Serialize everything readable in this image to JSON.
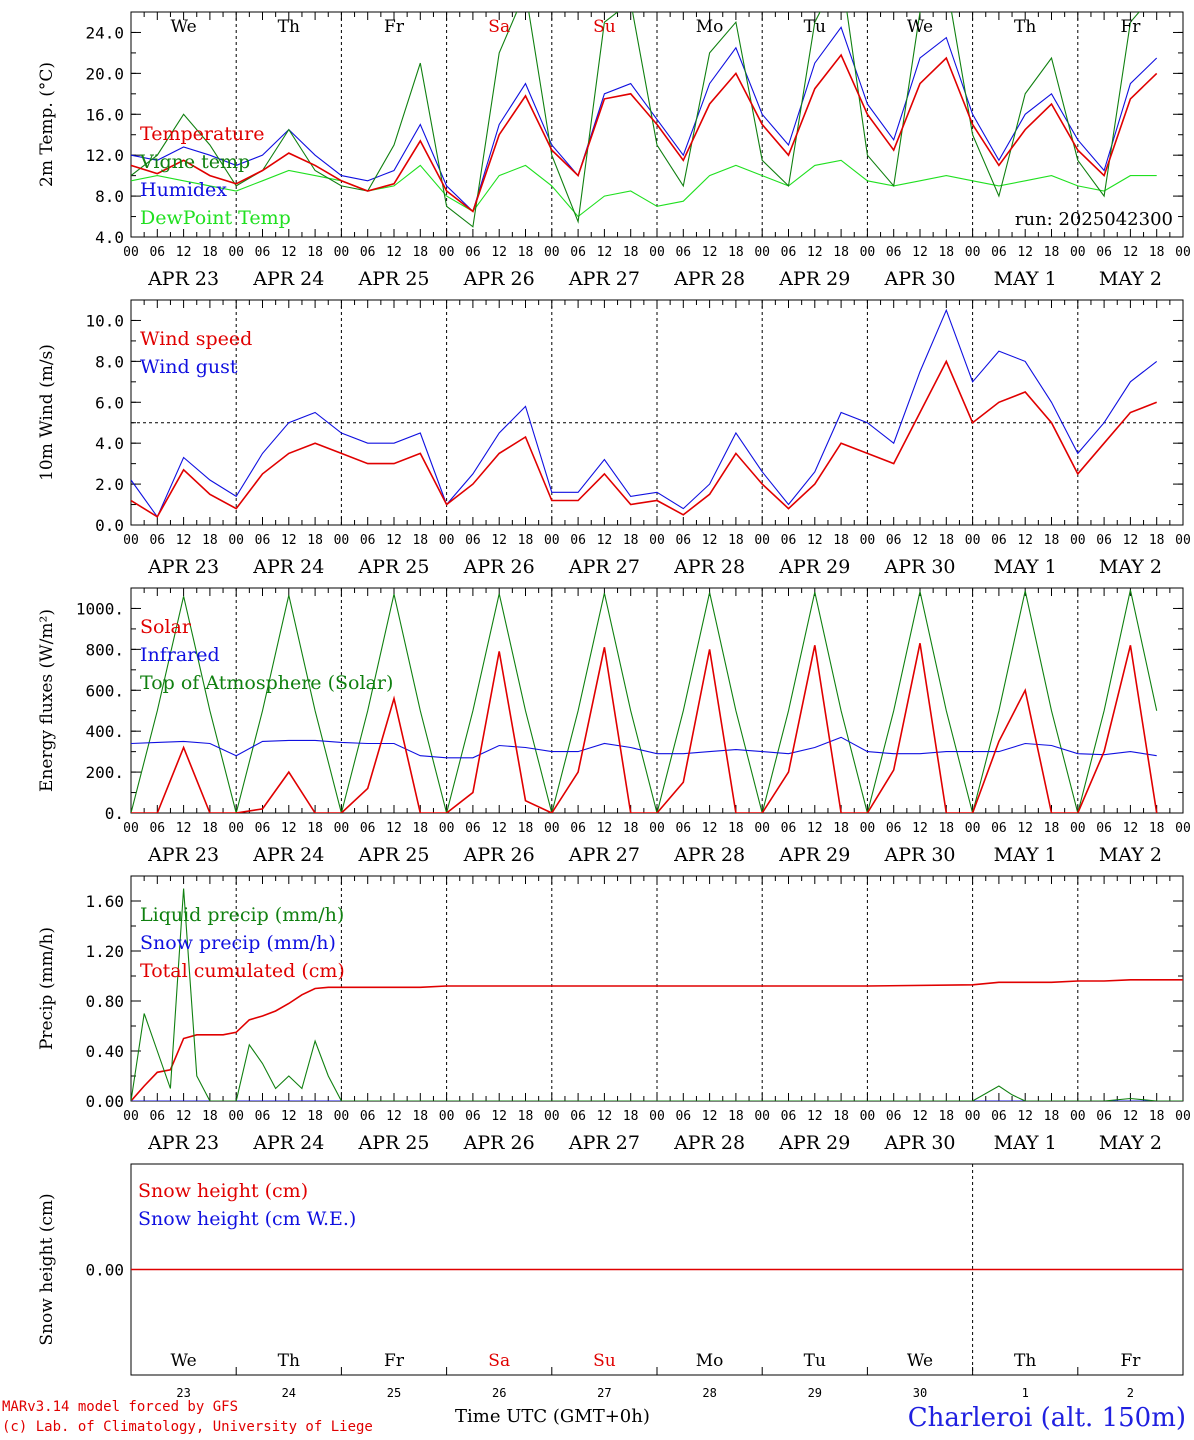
{
  "footer": {
    "model_credit": "MARv3.14 model forced by GFS",
    "lab_credit": "(c) Lab. of Climatology, University of Liege",
    "xaxis_title": "Time UTC (GMT+0h)",
    "station": "Charleroi (alt. 150m)"
  },
  "colors": {
    "red": "#e00000",
    "blue": "#1010e0",
    "green": "#108010",
    "lightgreen": "#20e020",
    "black": "#000000"
  },
  "chart_data": [
    {
      "type": "line",
      "title": "",
      "ylabel": "2m Temp. (°C)",
      "xlabel": "",
      "ylim": [
        4.0,
        26.0
      ],
      "yticks": [
        4.0,
        8.0,
        12.0,
        16.0,
        20.0,
        24.0
      ],
      "ytick_labels": [
        "4.0",
        "8.0",
        "12.0",
        "16.0",
        "20.0",
        "24.0"
      ],
      "x_hours": [
        0,
        6,
        12,
        18,
        24,
        30,
        36,
        42,
        48,
        54,
        60,
        66,
        72,
        78,
        84,
        90,
        96,
        102,
        108,
        114,
        120,
        126,
        132,
        138,
        144,
        150,
        156,
        162,
        168,
        174,
        180,
        186,
        192,
        198,
        204,
        210,
        216,
        222,
        228,
        234
      ],
      "weekday_labels": [
        "We",
        "Th",
        "Fr",
        "Sa",
        "Su",
        "Mo",
        "Tu",
        "We",
        "Th",
        "Fr"
      ],
      "weekday_colors": [
        "black",
        "black",
        "black",
        "red",
        "red",
        "black",
        "black",
        "black",
        "black",
        "black"
      ],
      "hour_tick_labels": [
        "00",
        "06",
        "12",
        "18"
      ],
      "date_labels": [
        "APR 23",
        "APR 24",
        "APR 25",
        "APR 26",
        "APR 27",
        "APR 28",
        "APR 29",
        "APR 30",
        "MAY  1",
        "MAY  2"
      ],
      "annotation": "run: 2025042300",
      "series": [
        {
          "name": "Temperature",
          "color": "red",
          "values": [
            11.0,
            10.2,
            11.5,
            10.0,
            9.2,
            10.5,
            12.2,
            11.0,
            9.5,
            8.5,
            9.2,
            13.4,
            8.5,
            6.5,
            14.0,
            17.8,
            12.5,
            10.0,
            17.5,
            18.0,
            15.0,
            11.5,
            17.0,
            20.0,
            15.0,
            12.0,
            18.5,
            21.8,
            16.0,
            12.5,
            19.0,
            21.5,
            15.0,
            11.0,
            14.5,
            17.0,
            12.5,
            10.0,
            17.5,
            20.0
          ]
        },
        {
          "name": "Vigne temp",
          "color": "green",
          "values": [
            10.0,
            12.0,
            16.0,
            13.0,
            9.0,
            10.5,
            14.5,
            10.5,
            9.0,
            8.5,
            13.0,
            21.0,
            7.0,
            5.0,
            22.0,
            28.0,
            12.0,
            5.5,
            25.0,
            27.0,
            13.0,
            9.0,
            22.0,
            25.0,
            11.5,
            9.0,
            25.0,
            30.0,
            12.0,
            9.0,
            26.0,
            29.0,
            14.0,
            8.0,
            18.0,
            21.5,
            11.5,
            8.0,
            25.0,
            28.0
          ]
        },
        {
          "name": "Humidex",
          "color": "blue",
          "values": [
            12.0,
            11.5,
            12.8,
            12.0,
            11.0,
            12.0,
            14.5,
            12.0,
            10.0,
            9.5,
            10.5,
            15.0,
            9.0,
            6.5,
            15.0,
            19.0,
            13.0,
            10.0,
            18.0,
            19.0,
            15.5,
            12.0,
            19.0,
            22.5,
            16.0,
            13.0,
            21.0,
            24.5,
            17.0,
            13.5,
            21.5,
            23.5,
            16.0,
            11.5,
            16.0,
            18.0,
            13.5,
            10.5,
            19.0,
            21.5
          ]
        },
        {
          "name": "DewPoint Temp",
          "color": "lightgreen",
          "values": [
            9.5,
            10.0,
            9.5,
            9.0,
            8.5,
            9.5,
            10.5,
            10.0,
            9.5,
            8.5,
            9.0,
            11.0,
            8.0,
            6.5,
            10.0,
            11.0,
            9.0,
            6.0,
            8.0,
            8.5,
            7.0,
            7.5,
            10.0,
            11.0,
            10.0,
            9.0,
            11.0,
            11.5,
            9.5,
            9.0,
            9.5,
            10.0,
            9.5,
            9.0,
            9.5,
            10.0,
            9.0,
            8.5,
            10.0,
            10.0
          ]
        }
      ]
    },
    {
      "type": "line",
      "title": "",
      "ylabel": "10m Wind (m/s)",
      "xlabel": "",
      "ylim": [
        0.0,
        11.0
      ],
      "yticks": [
        0.0,
        2.0,
        4.0,
        6.0,
        8.0,
        10.0
      ],
      "ytick_labels": [
        "0.0",
        "2.0",
        "4.0",
        "6.0",
        "8.0",
        "10.0"
      ],
      "x_hours": [
        0,
        6,
        12,
        18,
        24,
        30,
        36,
        42,
        48,
        54,
        60,
        66,
        72,
        78,
        84,
        90,
        96,
        102,
        108,
        114,
        120,
        126,
        132,
        138,
        144,
        150,
        156,
        162,
        168,
        174,
        180,
        186,
        192,
        198,
        204,
        210,
        216,
        222,
        228,
        234
      ],
      "reference_line": 5.0,
      "weekday_labels": [],
      "hour_tick_labels": [
        "00",
        "06",
        "12",
        "18"
      ],
      "date_labels": [
        "APR 23",
        "APR 24",
        "APR 25",
        "APR 26",
        "APR 27",
        "APR 28",
        "APR 29",
        "APR 30",
        "MAY  1",
        "MAY  2"
      ],
      "series": [
        {
          "name": "Wind speed",
          "color": "red",
          "values": [
            1.2,
            0.4,
            2.7,
            1.5,
            0.8,
            2.5,
            3.5,
            4.0,
            3.5,
            3.0,
            3.0,
            3.5,
            1.0,
            2.0,
            3.5,
            4.3,
            1.2,
            1.2,
            2.5,
            1.0,
            1.2,
            0.5,
            1.5,
            3.5,
            2.0,
            0.8,
            2.0,
            4.0,
            3.5,
            3.0,
            5.5,
            8.0,
            5.0,
            6.0,
            6.5,
            5.0,
            2.5,
            4.0,
            5.5,
            6.0
          ]
        },
        {
          "name": "Wind gust",
          "color": "blue",
          "values": [
            2.2,
            0.4,
            3.3,
            2.2,
            1.4,
            3.5,
            5.0,
            5.5,
            4.5,
            4.0,
            4.0,
            4.5,
            1.0,
            2.5,
            4.5,
            5.8,
            1.6,
            1.6,
            3.2,
            1.4,
            1.6,
            0.8,
            2.0,
            4.5,
            2.6,
            1.0,
            2.6,
            5.5,
            5.0,
            4.0,
            7.5,
            10.5,
            7.0,
            8.5,
            8.0,
            6.0,
            3.5,
            5.0,
            7.0,
            8.0
          ]
        }
      ]
    },
    {
      "type": "line",
      "title": "",
      "ylabel": "Energy fluxes (W/m²)",
      "xlabel": "",
      "ylim": [
        0,
        1100
      ],
      "yticks": [
        0,
        200,
        400,
        600,
        800,
        1000
      ],
      "ytick_labels": [
        "0.",
        "200.",
        "400.",
        "600.",
        "800.",
        "1000."
      ],
      "x_hours": [
        0,
        6,
        12,
        18,
        24,
        30,
        36,
        42,
        48,
        54,
        60,
        66,
        72,
        78,
        84,
        90,
        96,
        102,
        108,
        114,
        120,
        126,
        132,
        138,
        144,
        150,
        156,
        162,
        168,
        174,
        180,
        186,
        192,
        198,
        204,
        210,
        216,
        222,
        228,
        234
      ],
      "weekday_labels": [],
      "hour_tick_labels": [
        "00",
        "06",
        "12",
        "18"
      ],
      "date_labels": [
        "APR 23",
        "APR 24",
        "APR 25",
        "APR 26",
        "APR 27",
        "APR 28",
        "APR 29",
        "APR 30",
        "MAY  1",
        "MAY  2"
      ],
      "series": [
        {
          "name": "Solar",
          "color": "red",
          "values": [
            0,
            0,
            320,
            0,
            0,
            20,
            200,
            0,
            0,
            120,
            560,
            0,
            0,
            100,
            790,
            60,
            0,
            200,
            810,
            0,
            0,
            150,
            800,
            0,
            0,
            200,
            820,
            0,
            0,
            210,
            830,
            0,
            0,
            350,
            600,
            0,
            0,
            300,
            820,
            0
          ]
        },
        {
          "name": "Infrared",
          "color": "blue",
          "values": [
            340,
            345,
            350,
            340,
            280,
            350,
            355,
            355,
            345,
            340,
            340,
            280,
            270,
            270,
            330,
            320,
            300,
            300,
            340,
            320,
            290,
            290,
            300,
            310,
            300,
            290,
            320,
            370,
            300,
            290,
            290,
            300,
            300,
            300,
            340,
            330,
            290,
            285,
            300,
            280
          ]
        },
        {
          "name": "Top of Atmosphere (Solar)",
          "color": "green",
          "values": [
            0,
            500,
            1060,
            500,
            0,
            500,
            1065,
            500,
            0,
            500,
            1070,
            500,
            0,
            500,
            1072,
            500,
            0,
            500,
            1075,
            500,
            0,
            500,
            1078,
            500,
            0,
            500,
            1080,
            500,
            0,
            500,
            1083,
            500,
            0,
            500,
            1086,
            500,
            0,
            500,
            1090,
            500
          ]
        }
      ]
    },
    {
      "type": "line",
      "title": "",
      "ylabel": "Precip (mm/h)",
      "xlabel": "",
      "ylim": [
        0.0,
        1.8
      ],
      "yticks": [
        0.0,
        0.4,
        0.8,
        1.2,
        1.6
      ],
      "ytick_labels": [
        "0.00",
        "0.40",
        "0.80",
        "1.20",
        "1.60"
      ],
      "x_hours": [
        0,
        3,
        6,
        9,
        12,
        15,
        18,
        21,
        24,
        27,
        30,
        33,
        36,
        39,
        42,
        45,
        48,
        54,
        60,
        66,
        72,
        96,
        120,
        144,
        168,
        192,
        198,
        201,
        204,
        210,
        216,
        222,
        228,
        234,
        240
      ],
      "weekday_labels": [],
      "hour_tick_labels": [
        "00",
        "06",
        "12",
        "18"
      ],
      "date_labels": [
        "APR 23",
        "APR 24",
        "APR 25",
        "APR 26",
        "APR 27",
        "APR 28",
        "APR 29",
        "APR 30",
        "MAY  1",
        "MAY  2"
      ],
      "series": [
        {
          "name": "Liquid precip (mm/h)",
          "color": "green",
          "values": [
            0.0,
            0.7,
            0.4,
            0.1,
            1.7,
            0.2,
            0.0,
            0.0,
            0.0,
            0.45,
            0.3,
            0.1,
            0.2,
            0.1,
            0.48,
            0.2,
            0.0,
            0.0,
            0.0,
            0.0,
            0.0,
            0.0,
            0.0,
            0.0,
            0.0,
            0.0,
            0.12,
            0.05,
            0.0,
            0.0,
            0.0,
            0.0,
            0.02,
            0.0,
            0.0
          ]
        },
        {
          "name": "Snow precip (mm/h)",
          "color": "blue",
          "values": [
            0.0,
            0.0,
            0.0,
            0.0,
            0.0,
            0.0,
            0.0,
            0.0,
            0.0,
            0.0,
            0.0,
            0.0,
            0.0,
            0.0,
            0.0,
            0.0,
            0.0,
            0.0,
            0.0,
            0.0,
            0.0,
            0.0,
            0.0,
            0.0,
            0.0,
            0.0,
            0.0,
            0.0,
            0.0,
            0.0,
            0.0,
            0.0,
            0.0,
            0.0,
            0.0
          ]
        },
        {
          "name": "Total cumulated (cm)",
          "color": "red",
          "values": [
            0.0,
            0.12,
            0.23,
            0.25,
            0.5,
            0.53,
            0.53,
            0.53,
            0.55,
            0.65,
            0.68,
            0.72,
            0.78,
            0.85,
            0.9,
            0.91,
            0.91,
            0.91,
            0.91,
            0.91,
            0.92,
            0.92,
            0.92,
            0.92,
            0.92,
            0.93,
            0.95,
            0.95,
            0.95,
            0.95,
            0.96,
            0.96,
            0.97,
            0.97,
            0.97
          ]
        }
      ]
    },
    {
      "type": "line",
      "title": "",
      "ylabel": "Snow height (cm)",
      "xlabel": "",
      "ylim": [
        -1.0,
        1.0
      ],
      "yticks": [
        0.0
      ],
      "ytick_labels": [
        "0.00"
      ],
      "x_hours": [
        0,
        240
      ],
      "weekday_labels": [
        "We",
        "Th",
        "Fr",
        "Sa",
        "Su",
        "Mo",
        "Tu",
        "We",
        "Th",
        "Fr"
      ],
      "weekday_colors": [
        "black",
        "black",
        "black",
        "red",
        "red",
        "black",
        "black",
        "black",
        "black",
        "black"
      ],
      "day_numbers": [
        "23",
        "24",
        "25",
        "26",
        "27",
        "28",
        "29",
        "30",
        "1",
        "2"
      ],
      "series": [
        {
          "name": "Snow height (cm)",
          "color": "red",
          "values": [
            0.0,
            0.0
          ]
        },
        {
          "name": "Snow height (cm W.E.)",
          "color": "blue",
          "values": [
            0.0,
            0.0
          ]
        }
      ]
    }
  ]
}
